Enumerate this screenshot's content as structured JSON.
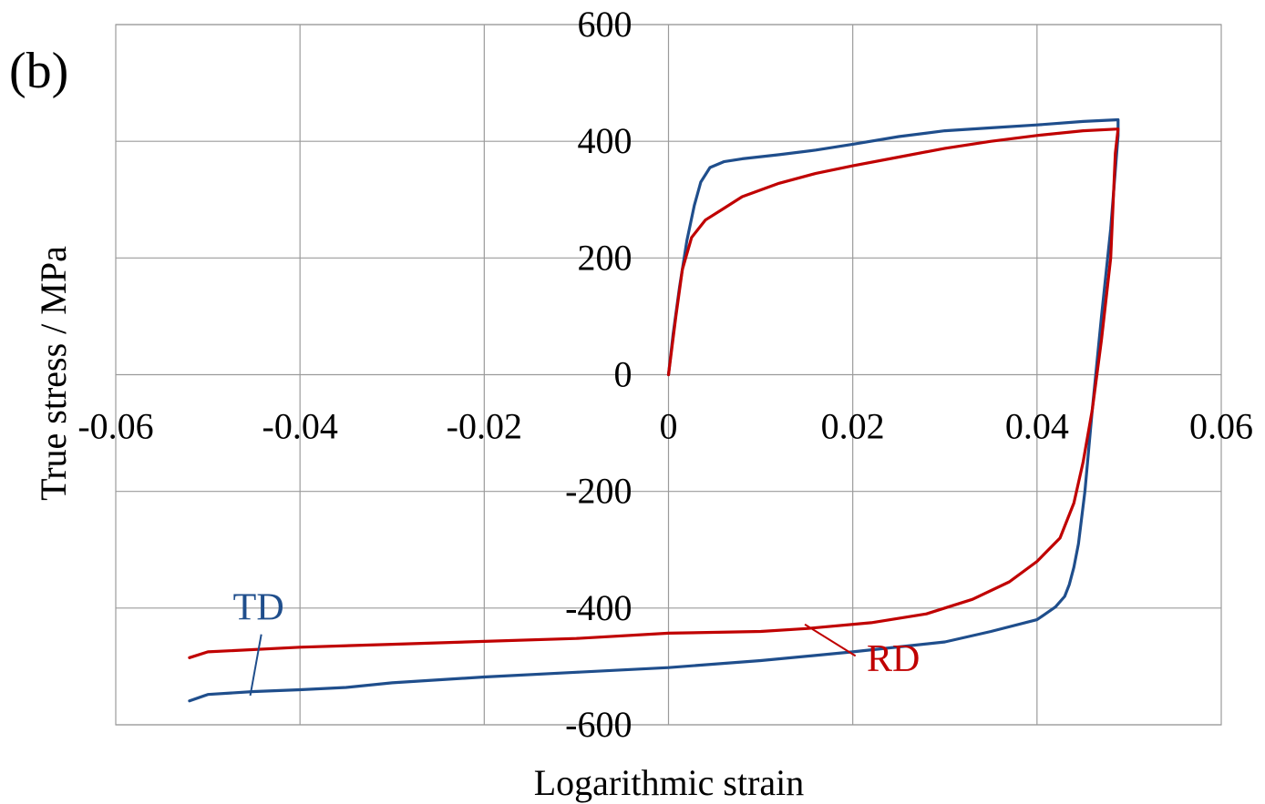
{
  "panel_label": "(b)",
  "colors": {
    "TD": "#1f4e8c",
    "RD": "#c00000",
    "grid": "#9b9b9b"
  },
  "chart_data": {
    "type": "line",
    "xlabel": "Logarithmic strain",
    "ylabel": "True  stress / MPa",
    "xlim": [
      -0.06,
      0.06
    ],
    "ylim": [
      -600,
      600
    ],
    "x_ticks": [
      -0.06,
      -0.04,
      -0.02,
      0,
      0.02,
      0.04,
      0.06
    ],
    "x_tick_labels": [
      "-0.06",
      "-0.04",
      "-0.02",
      "0",
      "0.02",
      "0.04",
      "0.06"
    ],
    "y_ticks": [
      600,
      400,
      200,
      0,
      -200,
      -400,
      -600
    ],
    "y_tick_labels": [
      "600",
      "400",
      "200",
      "0",
      "-200",
      "-400",
      "-600"
    ],
    "grid": true,
    "series": [
      {
        "name": "TD",
        "color": "#1f4e8c",
        "x": [
          0,
          0.0005,
          0.0012,
          0.002,
          0.0028,
          0.0035,
          0.0045,
          0.006,
          0.008,
          0.012,
          0.016,
          0.02,
          0.025,
          0.03,
          0.035,
          0.04,
          0.045,
          0.0488,
          0.0488,
          0.048,
          0.047,
          0.046,
          0.0452,
          0.0445,
          0.044,
          0.0435,
          0.043,
          0.042,
          0.04,
          0.035,
          0.03,
          0.02,
          0.01,
          0,
          -0.01,
          -0.02,
          -0.03,
          -0.035,
          -0.04,
          -0.045,
          -0.05,
          -0.052
        ],
        "y": [
          0,
          70,
          150,
          230,
          290,
          330,
          355,
          365,
          370,
          377,
          385,
          395,
          408,
          418,
          423,
          428,
          434,
          437,
          410,
          250,
          100,
          -60,
          -200,
          -290,
          -330,
          -360,
          -380,
          -398,
          -420,
          -440,
          -458,
          -475,
          -490,
          -502,
          -510,
          -518,
          -528,
          -536,
          -540,
          -543,
          -548,
          -559
        ]
      },
      {
        "name": "RD",
        "color": "#c00000",
        "x": [
          0,
          0.0008,
          0.0015,
          0.0025,
          0.004,
          0.006,
          0.008,
          0.012,
          0.016,
          0.02,
          0.025,
          0.03,
          0.035,
          0.04,
          0.045,
          0.0488,
          0.0485,
          0.048,
          0.047,
          0.046,
          0.045,
          0.044,
          0.0425,
          0.04,
          0.037,
          0.033,
          0.028,
          0.022,
          0.015,
          0.01,
          0,
          -0.01,
          -0.02,
          -0.03,
          -0.04,
          -0.05,
          -0.052
        ],
        "y": [
          0,
          100,
          180,
          235,
          265,
          285,
          305,
          328,
          345,
          358,
          373,
          388,
          400,
          410,
          418,
          421,
          380,
          200,
          60,
          -60,
          -150,
          -220,
          -280,
          -320,
          -355,
          -385,
          -410,
          -425,
          -435,
          -440,
          -443,
          -452,
          -457,
          -462,
          -467,
          -475,
          -485
        ]
      }
    ],
    "annotations": [
      {
        "text": "TD",
        "series": "TD"
      },
      {
        "text": "RD",
        "series": "RD"
      }
    ]
  }
}
